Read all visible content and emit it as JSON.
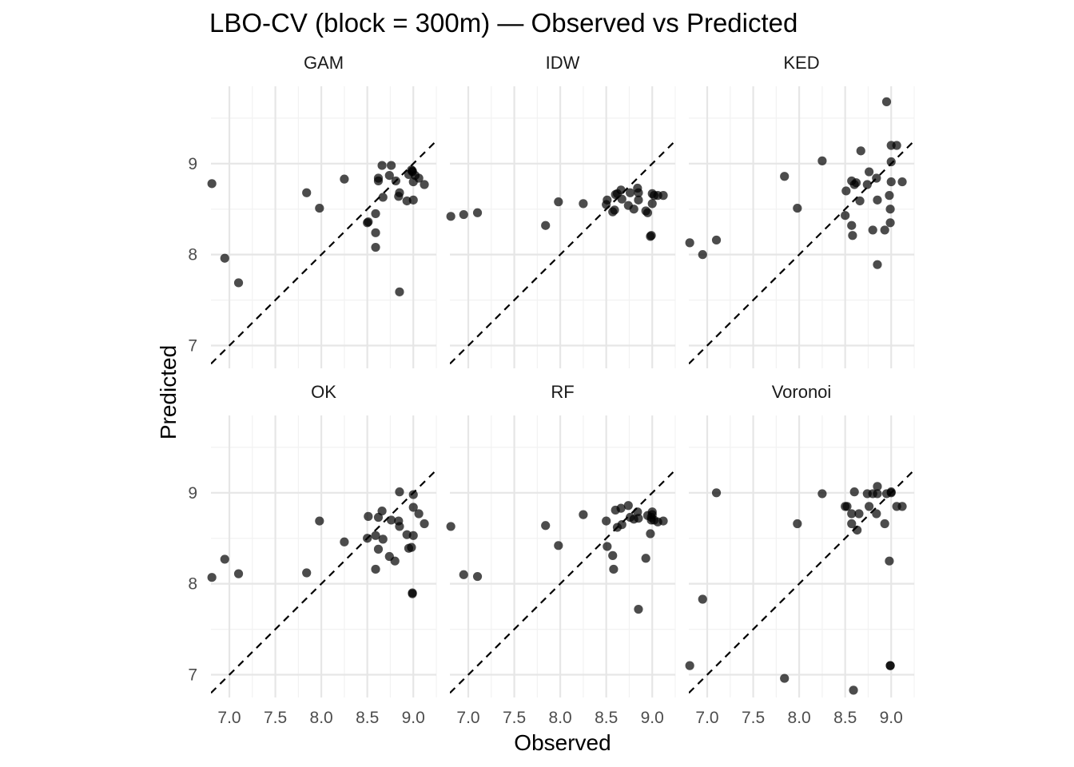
{
  "chart_data": {
    "type": "scatter",
    "title": "LBO-CV (block = 300m) — Observed vs Predicted",
    "xlabel": "Observed",
    "ylabel": "Predicted",
    "xlim": [
      6.8,
      9.25
    ],
    "ylim": [
      6.75,
      9.85
    ],
    "xticks": [
      7.0,
      7.5,
      8.0,
      8.5,
      9.0
    ],
    "xtick_labels": [
      "7.0",
      "7.5",
      "8.0",
      "8.5",
      "9.0"
    ],
    "yticks": [
      7,
      8,
      9
    ],
    "ytick_labels": [
      "7",
      "8",
      "9"
    ],
    "reference_line": "y = x (dashed)",
    "grid": true,
    "layout": "facet grid 2 rows x 3 columns, shared axes",
    "point_color": "#000000",
    "panels": [
      {
        "name": "GAM",
        "points": [
          [
            6.81,
            8.78
          ],
          [
            6.95,
            7.96
          ],
          [
            7.1,
            7.69
          ],
          [
            7.84,
            8.68
          ],
          [
            7.98,
            8.51
          ],
          [
            8.25,
            8.83
          ],
          [
            8.5,
            8.35
          ],
          [
            8.51,
            8.36
          ],
          [
            8.59,
            8.45
          ],
          [
            8.59,
            8.24
          ],
          [
            8.59,
            8.08
          ],
          [
            8.62,
            8.84
          ],
          [
            8.62,
            8.81
          ],
          [
            8.66,
            8.98
          ],
          [
            8.67,
            8.63
          ],
          [
            8.74,
            8.87
          ],
          [
            8.76,
            8.98
          ],
          [
            8.81,
            8.81
          ],
          [
            8.84,
            8.64
          ],
          [
            8.85,
            8.68
          ],
          [
            8.85,
            7.59
          ],
          [
            8.93,
            8.59
          ],
          [
            8.95,
            8.88
          ],
          [
            8.98,
            8.93
          ],
          [
            8.99,
            8.92
          ],
          [
            8.99,
            8.91
          ],
          [
            9.0,
            8.6
          ],
          [
            9.0,
            8.8
          ],
          [
            9.02,
            8.87
          ],
          [
            9.06,
            8.84
          ],
          [
            9.12,
            8.77
          ]
        ]
      },
      {
        "name": "IDW",
        "points": [
          [
            6.81,
            8.42
          ],
          [
            6.95,
            8.44
          ],
          [
            7.1,
            8.46
          ],
          [
            7.84,
            8.32
          ],
          [
            7.98,
            8.58
          ],
          [
            8.25,
            8.56
          ],
          [
            8.5,
            8.55
          ],
          [
            8.51,
            8.6
          ],
          [
            8.57,
            8.47
          ],
          [
            8.59,
            8.49
          ],
          [
            8.6,
            8.66
          ],
          [
            8.62,
            8.67
          ],
          [
            8.66,
            8.71
          ],
          [
            8.67,
            8.61
          ],
          [
            8.74,
            8.54
          ],
          [
            8.76,
            8.68
          ],
          [
            8.8,
            8.5
          ],
          [
            8.84,
            8.73
          ],
          [
            8.85,
            8.6
          ],
          [
            8.85,
            8.68
          ],
          [
            8.93,
            8.48
          ],
          [
            8.95,
            8.46
          ],
          [
            8.98,
            8.2
          ],
          [
            8.99,
            8.21
          ],
          [
            9.0,
            8.67
          ],
          [
            9.0,
            8.56
          ],
          [
            9.02,
            8.65
          ],
          [
            9.06,
            8.65
          ],
          [
            9.12,
            8.65
          ]
        ]
      },
      {
        "name": "KED",
        "points": [
          [
            6.81,
            8.13
          ],
          [
            6.95,
            8.0
          ],
          [
            7.1,
            8.16
          ],
          [
            7.84,
            8.86
          ],
          [
            7.98,
            8.51
          ],
          [
            8.25,
            9.03
          ],
          [
            8.5,
            8.43
          ],
          [
            8.51,
            8.7
          ],
          [
            8.57,
            8.81
          ],
          [
            8.57,
            8.32
          ],
          [
            8.58,
            8.21
          ],
          [
            8.6,
            8.77
          ],
          [
            8.62,
            8.79
          ],
          [
            8.66,
            8.59
          ],
          [
            8.67,
            9.14
          ],
          [
            8.74,
            8.77
          ],
          [
            8.76,
            8.91
          ],
          [
            8.8,
            8.27
          ],
          [
            8.84,
            8.84
          ],
          [
            8.85,
            8.6
          ],
          [
            8.85,
            7.89
          ],
          [
            8.93,
            8.27
          ],
          [
            8.95,
            9.68
          ],
          [
            8.98,
            8.65
          ],
          [
            8.99,
            8.35
          ],
          [
            8.99,
            8.5
          ],
          [
            9.0,
            8.8
          ],
          [
            9.0,
            9.02
          ],
          [
            9.0,
            9.2
          ],
          [
            9.06,
            9.2
          ],
          [
            9.12,
            8.8
          ]
        ]
      },
      {
        "name": "OK",
        "points": [
          [
            6.81,
            8.07
          ],
          [
            6.95,
            8.27
          ],
          [
            7.1,
            8.11
          ],
          [
            7.84,
            8.12
          ],
          [
            7.98,
            8.69
          ],
          [
            8.25,
            8.46
          ],
          [
            8.5,
            8.5
          ],
          [
            8.51,
            8.74
          ],
          [
            8.59,
            8.53
          ],
          [
            8.59,
            8.16
          ],
          [
            8.62,
            8.73
          ],
          [
            8.62,
            8.38
          ],
          [
            8.66,
            8.8
          ],
          [
            8.67,
            8.49
          ],
          [
            8.74,
            8.3
          ],
          [
            8.76,
            8.7
          ],
          [
            8.8,
            8.25
          ],
          [
            8.84,
            8.69
          ],
          [
            8.85,
            9.01
          ],
          [
            8.85,
            8.63
          ],
          [
            8.93,
            8.54
          ],
          [
            8.95,
            8.39
          ],
          [
            8.98,
            8.4
          ],
          [
            8.99,
            7.9
          ],
          [
            8.99,
            7.89
          ],
          [
            9.0,
            8.98
          ],
          [
            9.0,
            8.84
          ],
          [
            9.0,
            8.53
          ],
          [
            9.06,
            8.77
          ],
          [
            9.12,
            8.66
          ]
        ]
      },
      {
        "name": "RF",
        "points": [
          [
            6.81,
            8.63
          ],
          [
            6.95,
            8.1
          ],
          [
            7.1,
            8.08
          ],
          [
            7.84,
            8.64
          ],
          [
            7.98,
            8.42
          ],
          [
            8.25,
            8.76
          ],
          [
            8.5,
            8.69
          ],
          [
            8.51,
            8.41
          ],
          [
            8.57,
            8.31
          ],
          [
            8.58,
            8.16
          ],
          [
            8.6,
            8.81
          ],
          [
            8.62,
            8.62
          ],
          [
            8.66,
            8.83
          ],
          [
            8.67,
            8.65
          ],
          [
            8.74,
            8.86
          ],
          [
            8.76,
            8.73
          ],
          [
            8.8,
            8.71
          ],
          [
            8.84,
            8.79
          ],
          [
            8.85,
            7.72
          ],
          [
            8.85,
            8.72
          ],
          [
            8.93,
            8.28
          ],
          [
            8.95,
            8.75
          ],
          [
            8.98,
            8.55
          ],
          [
            8.99,
            8.73
          ],
          [
            8.99,
            8.7
          ],
          [
            9.0,
            8.79
          ],
          [
            9.0,
            8.76
          ],
          [
            9.02,
            8.7
          ],
          [
            9.06,
            8.68
          ],
          [
            9.12,
            8.69
          ]
        ]
      },
      {
        "name": "Voronoi",
        "points": [
          [
            6.81,
            7.1
          ],
          [
            6.95,
            7.83
          ],
          [
            7.1,
            9.0
          ],
          [
            7.84,
            6.96
          ],
          [
            7.98,
            8.66
          ],
          [
            8.25,
            8.99
          ],
          [
            8.5,
            8.85
          ],
          [
            8.52,
            8.85
          ],
          [
            8.57,
            8.77
          ],
          [
            8.57,
            8.66
          ],
          [
            8.59,
            6.83
          ],
          [
            8.6,
            9.01
          ],
          [
            8.63,
            8.59
          ],
          [
            8.65,
            8.77
          ],
          [
            8.74,
            8.99
          ],
          [
            8.76,
            8.85
          ],
          [
            8.8,
            8.99
          ],
          [
            8.84,
            8.77
          ],
          [
            8.85,
            9.07
          ],
          [
            8.85,
            8.99
          ],
          [
            8.93,
            8.66
          ],
          [
            8.95,
            8.99
          ],
          [
            8.98,
            8.25
          ],
          [
            8.99,
            7.1
          ],
          [
            8.99,
            7.1
          ],
          [
            9.0,
            9.0
          ],
          [
            9.0,
            9.01
          ],
          [
            9.06,
            8.85
          ],
          [
            9.12,
            8.85
          ]
        ]
      }
    ]
  }
}
